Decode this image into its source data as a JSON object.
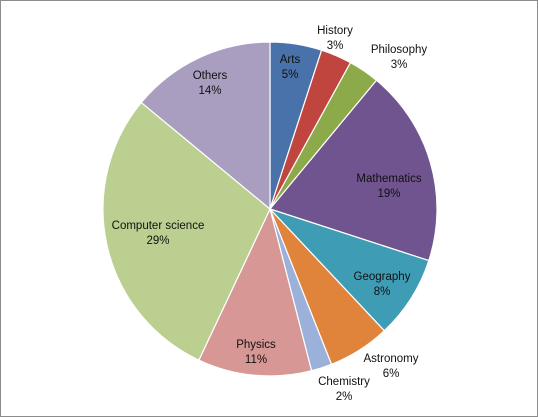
{
  "chart_data": {
    "type": "pie",
    "title": "",
    "legend": "none",
    "start_angle_deg": 0,
    "direction": "clockwise",
    "slices": [
      {
        "label": "Arts",
        "value": 5,
        "value_label": "5%",
        "color": "#4a72aa"
      },
      {
        "label": "History",
        "value": 3,
        "value_label": "3%",
        "color": "#c0453e"
      },
      {
        "label": "Philosophy",
        "value": 3,
        "value_label": "3%",
        "color": "#8daa4a"
      },
      {
        "label": "Mathematics",
        "value": 19,
        "value_label": "19%",
        "color": "#70548f"
      },
      {
        "label": "Geography",
        "value": 8,
        "value_label": "8%",
        "color": "#3e9cb4"
      },
      {
        "label": "Astronomy",
        "value": 6,
        "value_label": "6%",
        "color": "#e0843c"
      },
      {
        "label": "Chemistry",
        "value": 2,
        "value_label": "2%",
        "color": "#9bb1da"
      },
      {
        "label": "Physics",
        "value": 11,
        "value_label": "11%",
        "color": "#d69795"
      },
      {
        "label": "Computer science",
        "value": 29,
        "value_label": "29%",
        "color": "#bacf90"
      },
      {
        "label": "Others",
        "value": 14,
        "value_label": "14%",
        "color": "#aa9ec0"
      }
    ]
  }
}
